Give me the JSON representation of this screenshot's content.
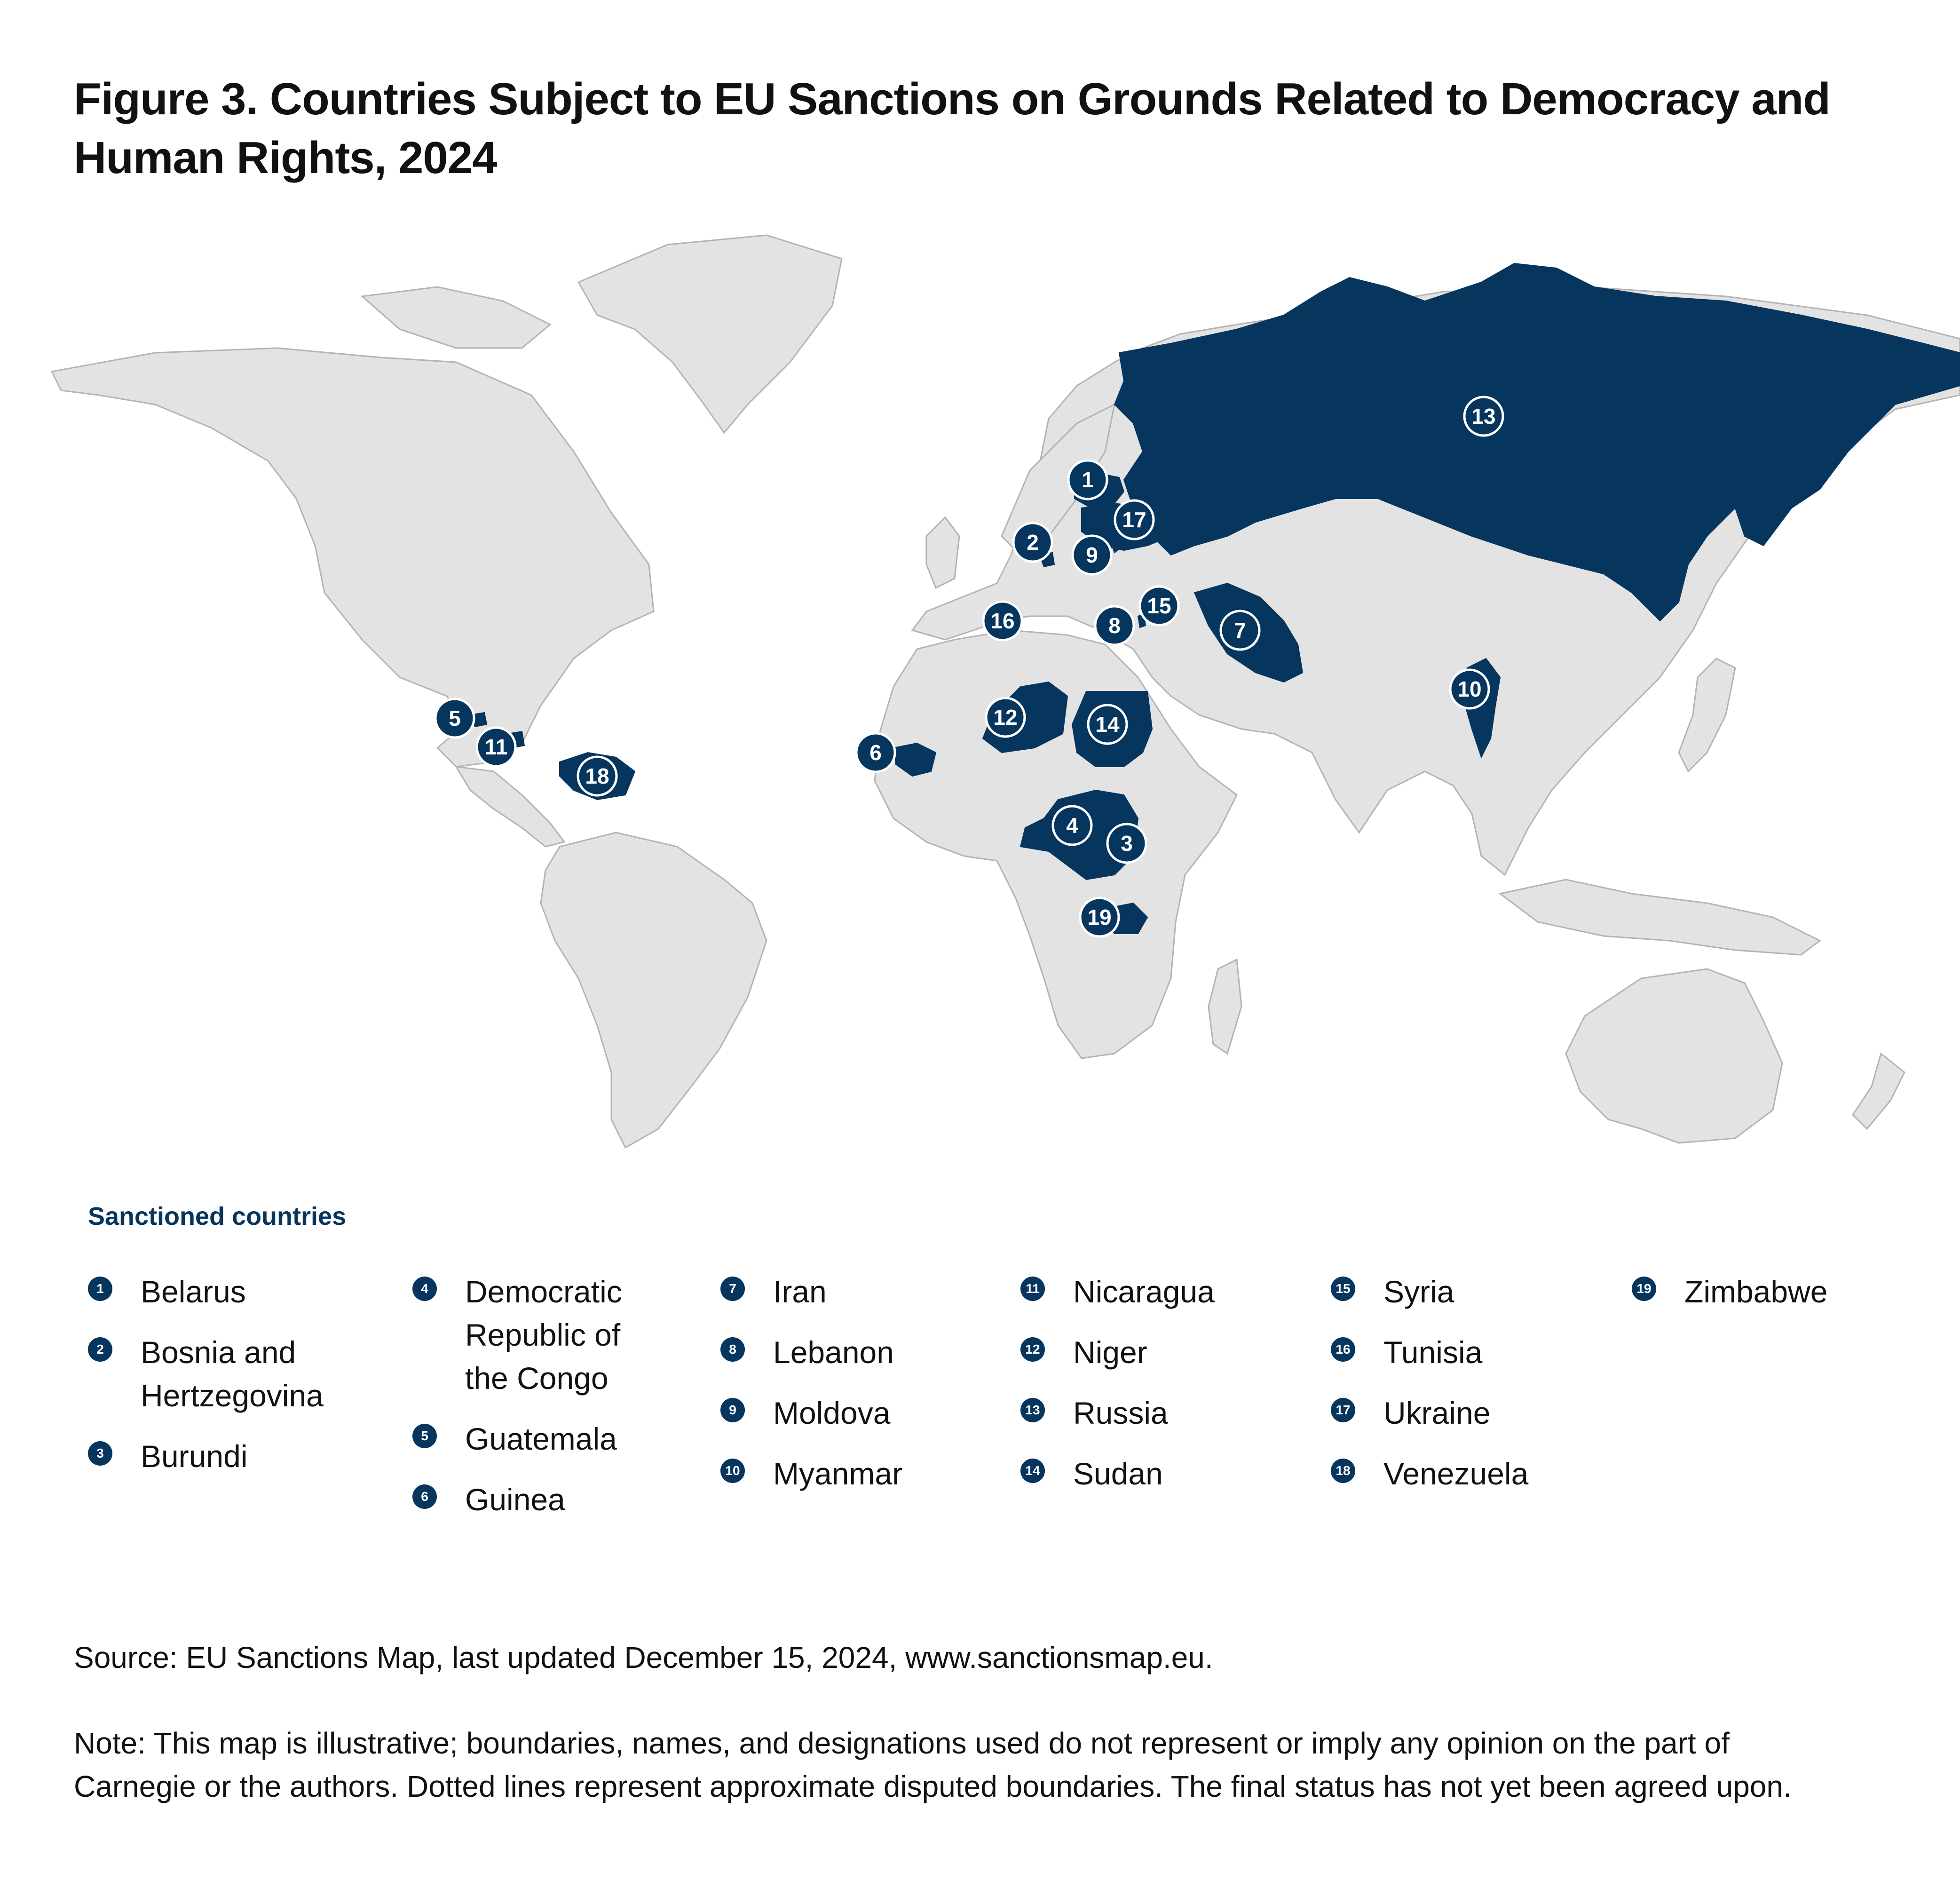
{
  "title": "Figure 3. Countries Subject to EU Sanctions on Grounds Related to Democracy and Human Rights, 2024",
  "colors": {
    "sanctioned": "#06355e",
    "land": "#e3e3e3",
    "border": "#b3b3b3",
    "background": "#ffffff"
  },
  "legend": {
    "heading": "Sanctioned countries",
    "items": [
      {
        "number": "1",
        "name": "Belarus"
      },
      {
        "number": "2",
        "name": "Bosnia and Hertzegovina"
      },
      {
        "number": "3",
        "name": "Burundi"
      },
      {
        "number": "4",
        "name": "Democratic Republic of the Congo"
      },
      {
        "number": "5",
        "name": "Guatemala"
      },
      {
        "number": "6",
        "name": "Guinea"
      },
      {
        "number": "7",
        "name": "Iran"
      },
      {
        "number": "8",
        "name": "Lebanon"
      },
      {
        "number": "9",
        "name": "Moldova"
      },
      {
        "number": "10",
        "name": "Myanmar"
      },
      {
        "number": "11",
        "name": "Nicaragua"
      },
      {
        "number": "12",
        "name": "Niger"
      },
      {
        "number": "13",
        "name": "Russia"
      },
      {
        "number": "14",
        "name": "Sudan"
      },
      {
        "number": "15",
        "name": "Syria"
      },
      {
        "number": "16",
        "name": "Tunisia"
      },
      {
        "number": "17",
        "name": "Ukraine"
      },
      {
        "number": "18",
        "name": "Venezuela"
      },
      {
        "number": "19",
        "name": "Zimbabwe"
      }
    ]
  },
  "source": "Source: EU Sanctions Map, last updated December 15, 2024, www.sanctionsmap.eu.",
  "note": "Note: This map is illustrative; boundaries, names, and designations used do not represent or imply any opinion on the part of Carnegie or the authors. Dotted lines represent approximate disputed boundaries. The final status has not yet been agreed upon."
}
